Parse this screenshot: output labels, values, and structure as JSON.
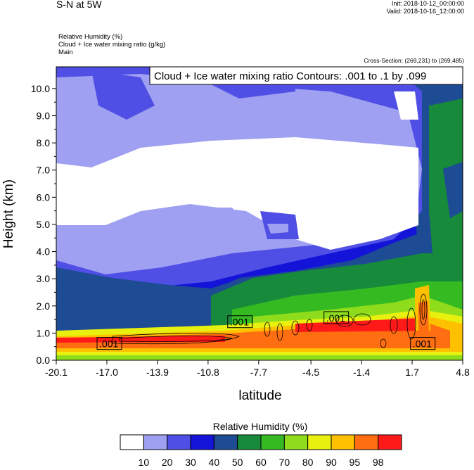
{
  "header": {
    "title": "S-N at 5W",
    "init": "Init: 2018-10-12_00:00:00",
    "valid": "Valid: 2018-10-16_12:00:00",
    "fields": [
      "Relative Humidity   (%)",
      "Cloud + Ice water mixing ratio   (g/kg)",
      "Main"
    ],
    "cross_section": "Cross-Section: (269,231) to (269,485)"
  },
  "chart_data": {
    "type": "heatmap",
    "contour_label": "Cloud + Ice water mixing ratio Contours: .001 to .1 by .099",
    "xlabel": "latitude",
    "ylabel": "Height (km)",
    "xlim": [
      -20.1,
      4.8
    ],
    "ylim": [
      0.0,
      10.8
    ],
    "xticks": [
      "-20.1",
      "-17.0",
      "-13.9",
      "-10.8",
      "-7.7",
      "-4.5",
      "-1.4",
      "1.7",
      "4.8"
    ],
    "yticks": [
      "0.0",
      "1.0",
      "2.0",
      "3.0",
      "4.0",
      "5.0",
      "6.0",
      "7.0",
      "8.0",
      "9.0",
      "10.0"
    ],
    "contour_values": [
      ".001",
      ".001",
      ".001",
      ".001"
    ],
    "colorbar": {
      "title": "Relative Humidity  (%)",
      "labels": [
        "10",
        "20",
        "30",
        "40",
        "50",
        "60",
        "70",
        "80",
        "90",
        "95",
        "98"
      ],
      "colors": [
        "#ffffff",
        "#a0a0f2",
        "#4f4fe6",
        "#1414d9",
        "#1d4b94",
        "#178a3b",
        "#35ba22",
        "#8edc1c",
        "#e8f00f",
        "#ffc000",
        "#ff6e10",
        "#ff1a1a"
      ]
    }
  }
}
